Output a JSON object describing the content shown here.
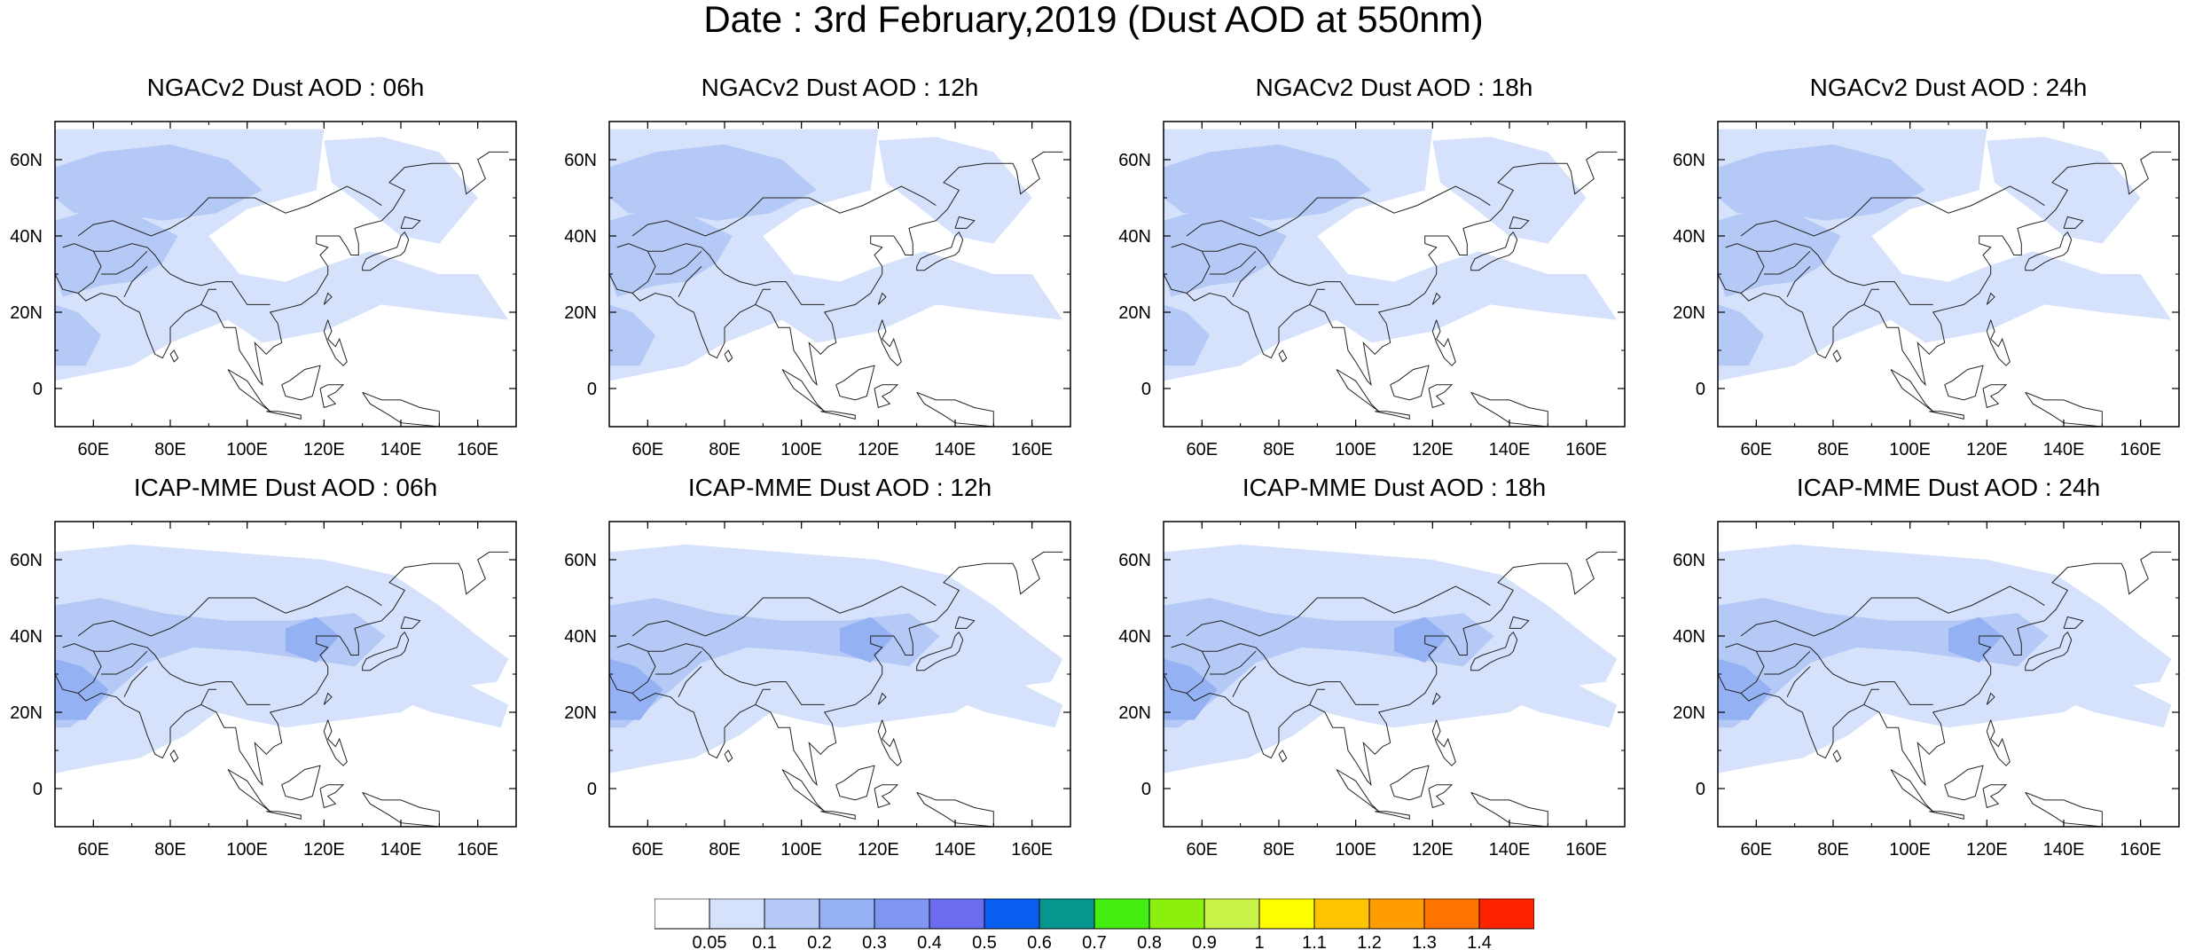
{
  "title": "Date : 3rd February,2019 (Dust AOD at 550nm)",
  "map": {
    "lon_range": [
      50,
      170
    ],
    "lat_range": [
      -10,
      70
    ],
    "lon_ticks": [
      "60E",
      "80E",
      "100E",
      "120E",
      "140E",
      "160E"
    ],
    "lat_ticks": [
      "0",
      "20N",
      "40N",
      "60N"
    ],
    "lon_tick_values": [
      60,
      80,
      100,
      120,
      140,
      160
    ],
    "lat_tick_values": [
      0,
      20,
      40,
      60
    ]
  },
  "panels": [
    {
      "id": "ngac-06",
      "title": "NGACv2 Dust AOD : 06h"
    },
    {
      "id": "ngac-12",
      "title": "NGACv2 Dust AOD : 12h"
    },
    {
      "id": "ngac-18",
      "title": "NGACv2 Dust AOD : 18h"
    },
    {
      "id": "ngac-24",
      "title": "NGACv2 Dust AOD : 24h"
    },
    {
      "id": "icap-06",
      "title": "ICAP-MME Dust AOD : 06h"
    },
    {
      "id": "icap-12",
      "title": "ICAP-MME Dust AOD : 12h"
    },
    {
      "id": "icap-18",
      "title": "ICAP-MME Dust AOD : 18h"
    },
    {
      "id": "icap-24",
      "title": "ICAP-MME Dust AOD : 24h"
    }
  ],
  "colorbar": {
    "labels": [
      "0.05",
      "0.1",
      "0.2",
      "0.3",
      "0.4",
      "0.5",
      "0.6",
      "0.7",
      "0.8",
      "0.9",
      "1",
      "1.1",
      "1.2",
      "1.3",
      "1.4"
    ],
    "colors": [
      "#ffffff",
      "#d6e2fb",
      "#b4c9f6",
      "#94b1f3",
      "#7f96f2",
      "#6b6cf0",
      "#0a5ff0",
      "#06968f",
      "#44ee10",
      "#8cf00e",
      "#c8f248",
      "#fffe00",
      "#ffc400",
      "#ff9c00",
      "#ff7400",
      "#ff2400"
    ]
  }
}
